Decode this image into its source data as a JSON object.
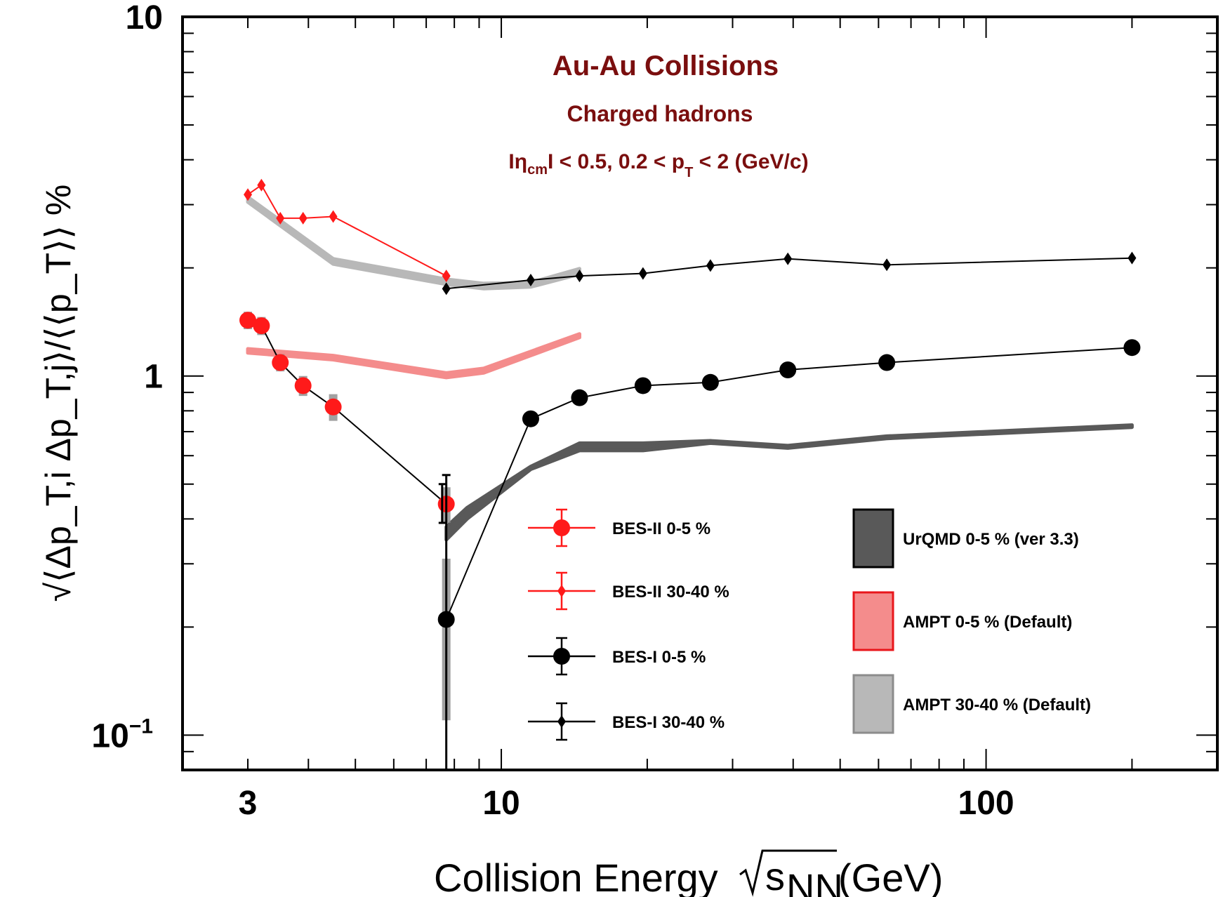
{
  "chart_data": {
    "type": "line",
    "x_scale": "log",
    "y_scale": "log",
    "xlim": [
      2.2,
      300
    ],
    "ylim": [
      0.08,
      10
    ],
    "xlabel": {
      "main": "Collision Energy ",
      "sub": "NN",
      "base": "s",
      "unit": " (GeV)"
    },
    "ylabel": "√⟨Δp_T,i Δp_T,j⟩/⟨⟨p_T⟩⟩ %",
    "x_ticks": [
      {
        "value": 3,
        "label": "3"
      },
      {
        "value": 10,
        "label": "10"
      },
      {
        "value": 100,
        "label": "100"
      }
    ],
    "y_ticks": [
      {
        "value": 10,
        "label": "10"
      },
      {
        "value": 1,
        "label": "1"
      },
      {
        "value": 0.1,
        "label": "10",
        "sup": "−1"
      }
    ],
    "annotations": {
      "title": "Au-Au Collisions",
      "subtitle": "Charged hadrons",
      "cuts_parts": [
        "Iη",
        "cm",
        "I < 0.5, 0.2 < p",
        "T",
        " < 2 (GeV/c)"
      ]
    },
    "series": [
      {
        "name": "BES-II 0-5 %",
        "color": "#ff1a1a",
        "marker": "circle",
        "x": [
          3.0,
          3.2,
          3.5,
          3.9,
          4.5,
          7.7
        ],
        "y": [
          1.43,
          1.38,
          1.09,
          0.94,
          0.82,
          0.44
        ],
        "yerr_sys": [
          0.08,
          0.08,
          0.06,
          0.06,
          0.07,
          0.05
        ]
      },
      {
        "name": "BES-II 30-40 %",
        "color": "#ff1a1a",
        "marker": "diamond",
        "x": [
          3.0,
          3.2,
          3.5,
          3.9,
          4.5,
          7.7
        ],
        "y": [
          3.2,
          3.4,
          2.75,
          2.75,
          2.78,
          1.9
        ]
      },
      {
        "name": "BES-I 0-5 %",
        "color": "#000000",
        "marker": "circle",
        "x": [
          7.7,
          11.5,
          14.5,
          19.6,
          27,
          39,
          62.4,
          200
        ],
        "y": [
          0.21,
          0.76,
          0.87,
          0.94,
          0.96,
          1.04,
          1.09,
          1.2
        ],
        "yerr_stat": [
          [
            0.08,
            0.53
          ]
        ],
        "yerr_sys": [
          0.1,
          0.02,
          0.02,
          0.02,
          0.02,
          0.02,
          0.02,
          0.02
        ]
      },
      {
        "name": "BES-I 30-40 %",
        "color": "#000000",
        "marker": "diamond",
        "x": [
          7.7,
          11.5,
          14.5,
          19.6,
          27,
          39,
          62.4,
          200
        ],
        "y": [
          1.75,
          1.85,
          1.9,
          1.93,
          2.03,
          2.12,
          2.04,
          2.13
        ]
      }
    ],
    "bands": [
      {
        "name": "UrQMD 0-5 % (ver 3.3)",
        "color": "#595959",
        "x": [
          7.7,
          8.5,
          11.5,
          14.5,
          19.6,
          27,
          39,
          62.4,
          200
        ],
        "y_low": [
          0.35,
          0.4,
          0.55,
          0.62,
          0.62,
          0.65,
          0.63,
          0.67,
          0.72
        ],
        "y_high": [
          0.38,
          0.43,
          0.56,
          0.65,
          0.65,
          0.66,
          0.64,
          0.68,
          0.73
        ]
      },
      {
        "name": "AMPT 0-5 % (Default)",
        "color": "#f48c8c",
        "x": [
          3.0,
          4.5,
          7.7,
          9.2,
          14.5
        ],
        "y_low": [
          1.16,
          1.11,
          0.99,
          1.02,
          1.28
        ],
        "y_high": [
          1.19,
          1.14,
          1.02,
          1.05,
          1.31
        ]
      },
      {
        "name": "AMPT 30-40 % (Default)",
        "color": "#b8b8b8",
        "x": [
          3.0,
          4.5,
          7.7,
          9.2,
          11.5,
          14.5
        ],
        "y_low": [
          3.05,
          2.05,
          1.8,
          1.75,
          1.77,
          1.92
        ],
        "y_high": [
          3.15,
          2.12,
          1.86,
          1.81,
          1.82,
          1.99
        ]
      }
    ],
    "legend_left": [
      {
        "label": "BES-II 0-5 %",
        "series": 0
      },
      {
        "label": "BES-II 30-40 %",
        "series": 1
      },
      {
        "label": "BES-I 0-5 %",
        "series": 2
      },
      {
        "label": "BES-I 30-40 %",
        "series": 3
      }
    ],
    "legend_right": [
      {
        "label": "UrQMD 0-5 % (ver 3.3)",
        "fill": "#595959",
        "stroke": "#000000"
      },
      {
        "label": "AMPT 0-5 % (Default)",
        "fill": "#f48c8c",
        "stroke": "#e8161b"
      },
      {
        "label": "AMPT 30-40 % (Default)",
        "fill": "#b8b8b8",
        "stroke": "#8c8c8c"
      }
    ]
  }
}
